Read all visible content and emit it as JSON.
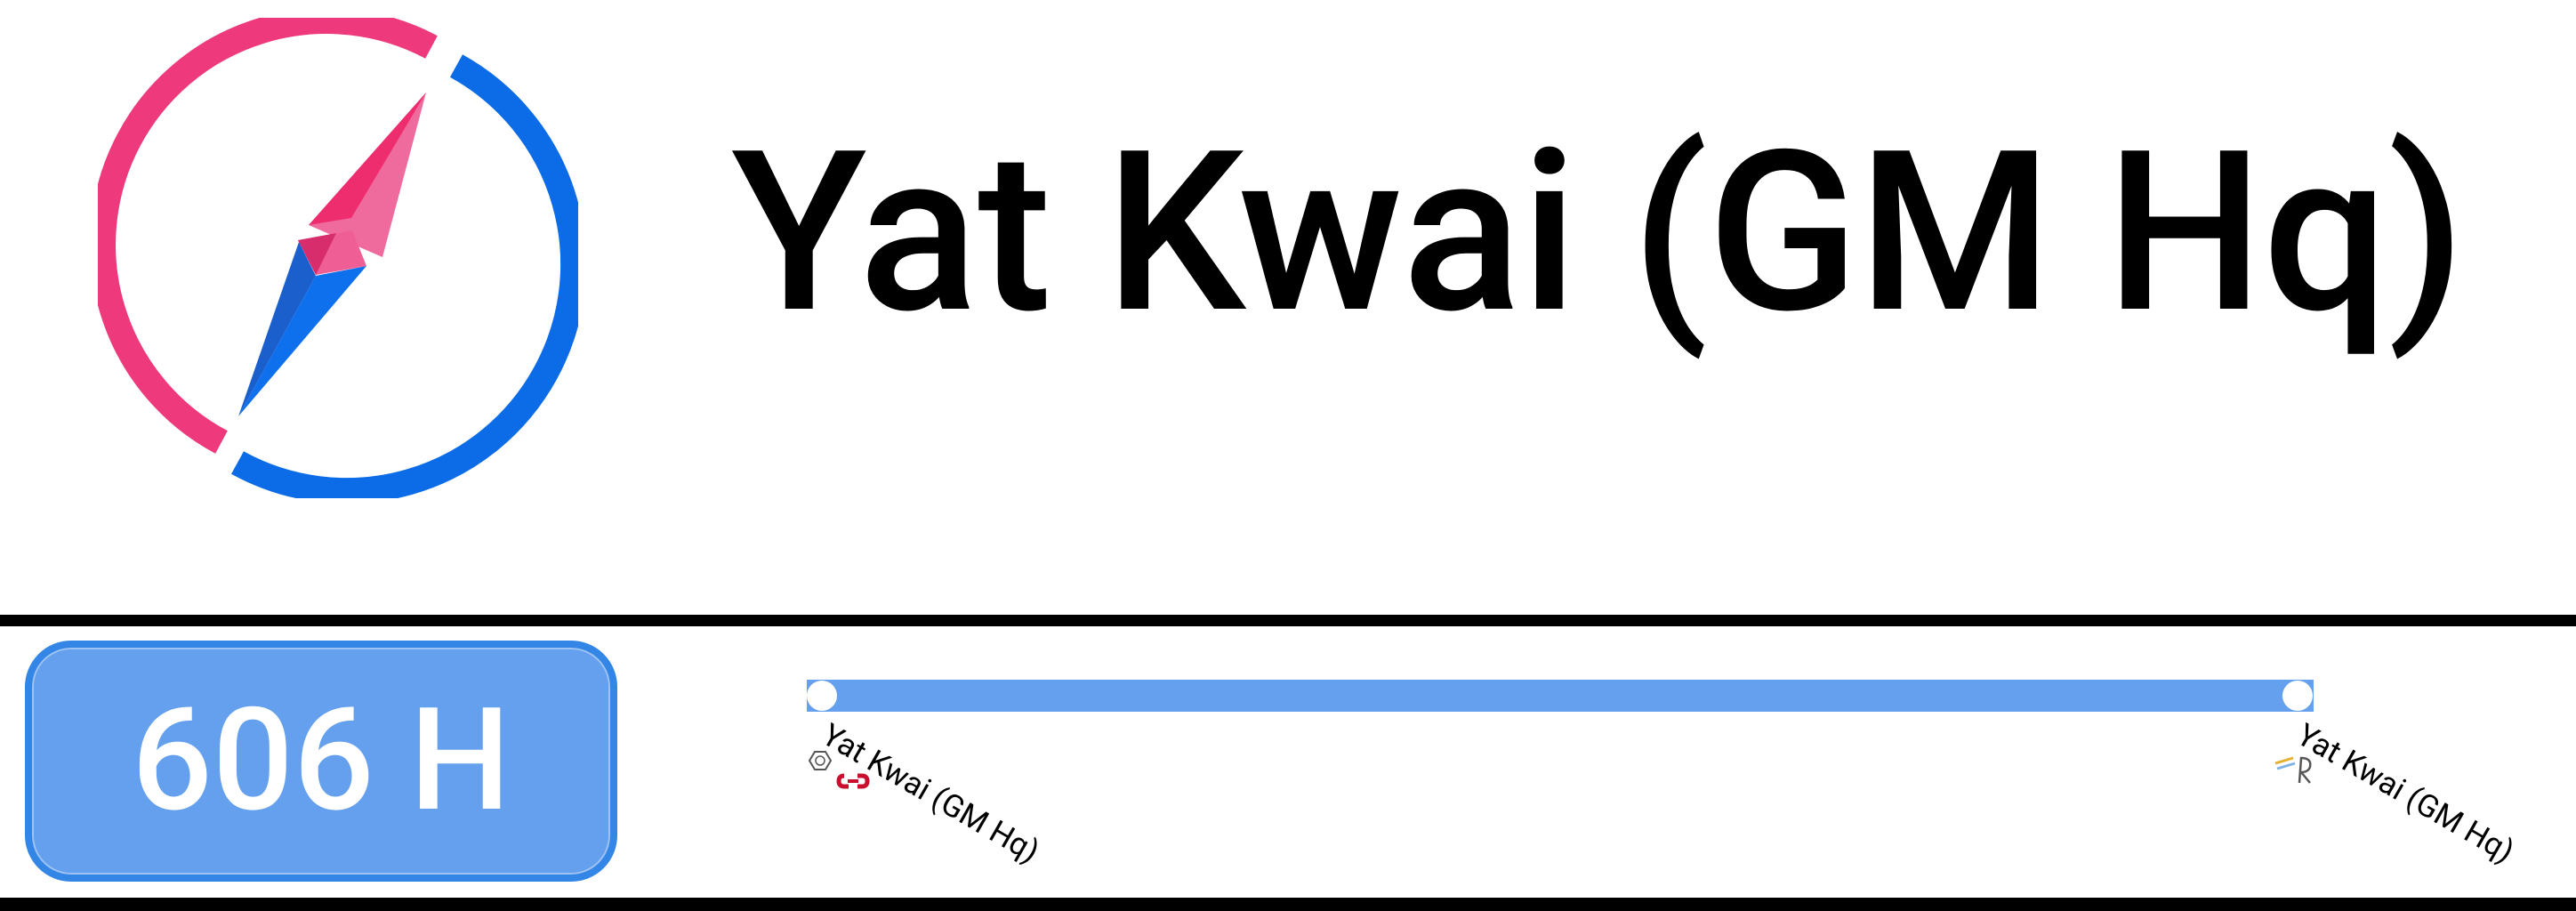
{
  "header": {
    "title": "Yat Kwai (GM Hq)",
    "logo_icon": "compass-logo-icon"
  },
  "route": {
    "badge_label": "606 H",
    "line_color": "#64a0ee",
    "stops": [
      {
        "name": "Yat Kwai (GM Hq)",
        "icons": [
          "hexagon-operator-icon",
          "red-link-icon"
        ]
      },
      {
        "name": "Yat Kwai (GM Hq)",
        "icons": [
          "rail-operator-icon"
        ]
      }
    ]
  },
  "colors": {
    "compass_pink": "#ee3a7c",
    "compass_blue": "#0c6be6",
    "badge_fill": "#64a0ee",
    "badge_border": "#3385e6",
    "rule": "#000000"
  }
}
